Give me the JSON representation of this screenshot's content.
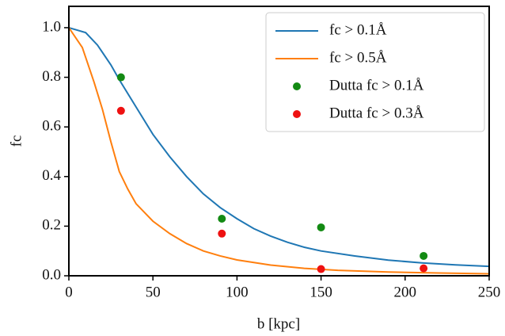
{
  "chart_data": {
    "type": "line",
    "xlabel": "b [kpc]",
    "ylabel": "fc",
    "xlim": [
      0,
      250
    ],
    "ylim": [
      0,
      1.086
    ],
    "xticks": [
      0,
      50,
      100,
      150,
      200,
      250
    ],
    "yticks": [
      {
        "value": 0,
        "label": "0.0"
      },
      0.2,
      0.4,
      0.6,
      0.8,
      {
        "value": 1,
        "label": "1.0"
      }
    ],
    "legend": "upper right",
    "series": [
      {
        "name": "fc > 0.1Å",
        "color": "#1f77b4",
        "style": "line",
        "x": [
          0,
          10,
          17,
          25,
          30,
          40,
          50,
          60,
          70,
          80,
          90,
          100,
          110,
          120,
          130,
          140,
          150,
          170,
          190,
          210,
          230,
          250
        ],
        "values": [
          1.0,
          0.98,
          0.93,
          0.85,
          0.79,
          0.68,
          0.57,
          0.48,
          0.4,
          0.33,
          0.275,
          0.23,
          0.19,
          0.16,
          0.135,
          0.115,
          0.1,
          0.08,
          0.063,
          0.052,
          0.044,
          0.038
        ]
      },
      {
        "name": "fc > 0.5Å",
        "color": "#ff7f0e",
        "style": "line",
        "x": [
          0,
          8,
          15,
          20,
          25,
          30,
          35,
          40,
          50,
          60,
          70,
          80,
          90,
          100,
          120,
          140,
          160,
          190,
          220,
          250
        ],
        "values": [
          1.0,
          0.92,
          0.78,
          0.67,
          0.54,
          0.42,
          0.35,
          0.29,
          0.22,
          0.17,
          0.13,
          0.1,
          0.08,
          0.064,
          0.043,
          0.03,
          0.022,
          0.015,
          0.011,
          0.008
        ]
      },
      {
        "name": "Dutta fc > 0.1Å",
        "color": "#138a13",
        "style": "points",
        "x": [
          31,
          91,
          150,
          211
        ],
        "values": [
          0.8,
          0.23,
          0.195,
          0.08
        ]
      },
      {
        "name": "Dutta fc > 0.3Å",
        "color": "#ee1111",
        "style": "points",
        "x": [
          31,
          91,
          150,
          211
        ],
        "values": [
          0.665,
          0.17,
          0.027,
          0.03
        ]
      }
    ]
  }
}
